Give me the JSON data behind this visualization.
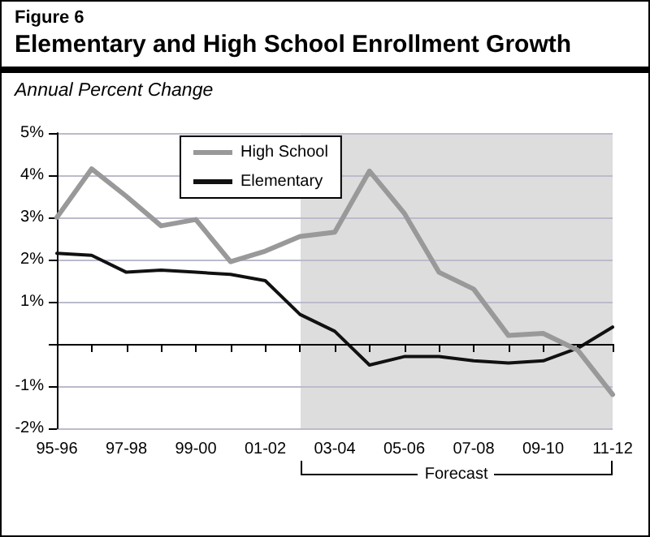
{
  "chart_data": {
    "type": "line",
    "title": "Elementary and High School Enrollment Growth",
    "ylabel": "Annual Percent Change",
    "annotations": [
      "Figure 6",
      "Forecast"
    ],
    "categories": [
      "95-96",
      null,
      "97-98",
      null,
      "99-00",
      null,
      "01-02",
      null,
      "03-04",
      null,
      "05-06",
      null,
      "07-08",
      null,
      "09-10",
      null,
      "11-12"
    ],
    "series": [
      {
        "name": "High School",
        "color": "#999999",
        "values": [
          3.0,
          4.15,
          3.5,
          2.8,
          2.95,
          1.95,
          2.2,
          2.55,
          2.65,
          4.1,
          3.1,
          1.7,
          1.3,
          0.2,
          0.25,
          -0.15,
          -1.2
        ]
      },
      {
        "name": "Elementary",
        "color": "#111111",
        "values": [
          2.15,
          2.1,
          1.7,
          1.75,
          1.7,
          1.65,
          1.5,
          0.7,
          0.3,
          -0.5,
          -0.3,
          -0.3,
          -0.4,
          -0.45,
          -0.4,
          -0.1,
          0.4
        ]
      }
    ],
    "ylim": [
      -2,
      5
    ],
    "yticks": [
      {
        "value": -2,
        "label": "-2%"
      },
      {
        "value": -1,
        "label": "-1%"
      },
      {
        "value": 0,
        "label": null
      },
      {
        "value": 1,
        "label": "1%"
      },
      {
        "value": 2,
        "label": "2%"
      },
      {
        "value": 3,
        "label": "3%"
      },
      {
        "value": 4,
        "label": "4%"
      },
      {
        "value": 5,
        "label": "5%"
      }
    ],
    "ref_lines": [
      {
        "axis": "y",
        "value": 0,
        "color": "#000000"
      }
    ],
    "grid": "y",
    "legend": "top left",
    "marker": "none",
    "line_style": "solid"
  }
}
